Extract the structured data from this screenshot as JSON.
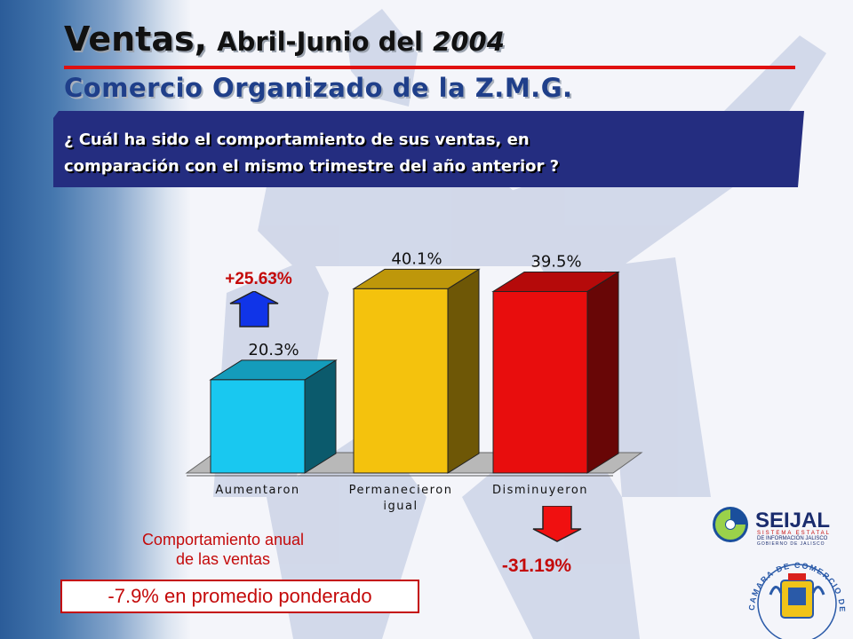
{
  "header": {
    "title_main": "Ventas",
    "title_sep": ",",
    "title_rest": "Abril-Junio del",
    "title_year": "2004",
    "subtitle": "Comercio Organizado de la Z.M.G."
  },
  "question": {
    "line1": "¿ Cuál ha sido el comportamiento de sus ventas, en",
    "line2": "comparación con el mismo trimestre del año anterior ?"
  },
  "chart_data": {
    "type": "bar",
    "categories": [
      "Aumentaron",
      "Permanecieron igual",
      "Disminuyeron"
    ],
    "category_lines": [
      [
        "Aumentaron"
      ],
      [
        "Permanecieron",
        "igual"
      ],
      [
        "Disminuyeron"
      ]
    ],
    "values": [
      20.3,
      40.1,
      39.5
    ],
    "value_labels": [
      "20.3%",
      "40.1%",
      "39.5%"
    ],
    "colors": [
      "#19c8f0",
      "#f4c20d",
      "#e80d0d"
    ],
    "ylim": [
      0,
      45
    ],
    "annotations": [
      {
        "text": "+25.63%",
        "direction": "up",
        "color": "#1034e8",
        "text_color": "#c40a0a"
      },
      {
        "text": "-31.19%",
        "direction": "down",
        "color": "#f01010",
        "text_color": "#c40a0a"
      }
    ]
  },
  "summary": {
    "line1": "Comportamiento anual",
    "line2": "de las ventas",
    "average": "-7.9% en promedio ponderado"
  },
  "logos": {
    "seijal_name": "SEIJAL",
    "seijal_line1": "SISTEMA ESTATAL",
    "seijal_line2": "DE INFORMACIÓN JALISCO",
    "seijal_line3": "GOBIERNO DE JALISCO",
    "camara_text": "CAMARA DE COMERCIO DE GUADALAJARA"
  }
}
